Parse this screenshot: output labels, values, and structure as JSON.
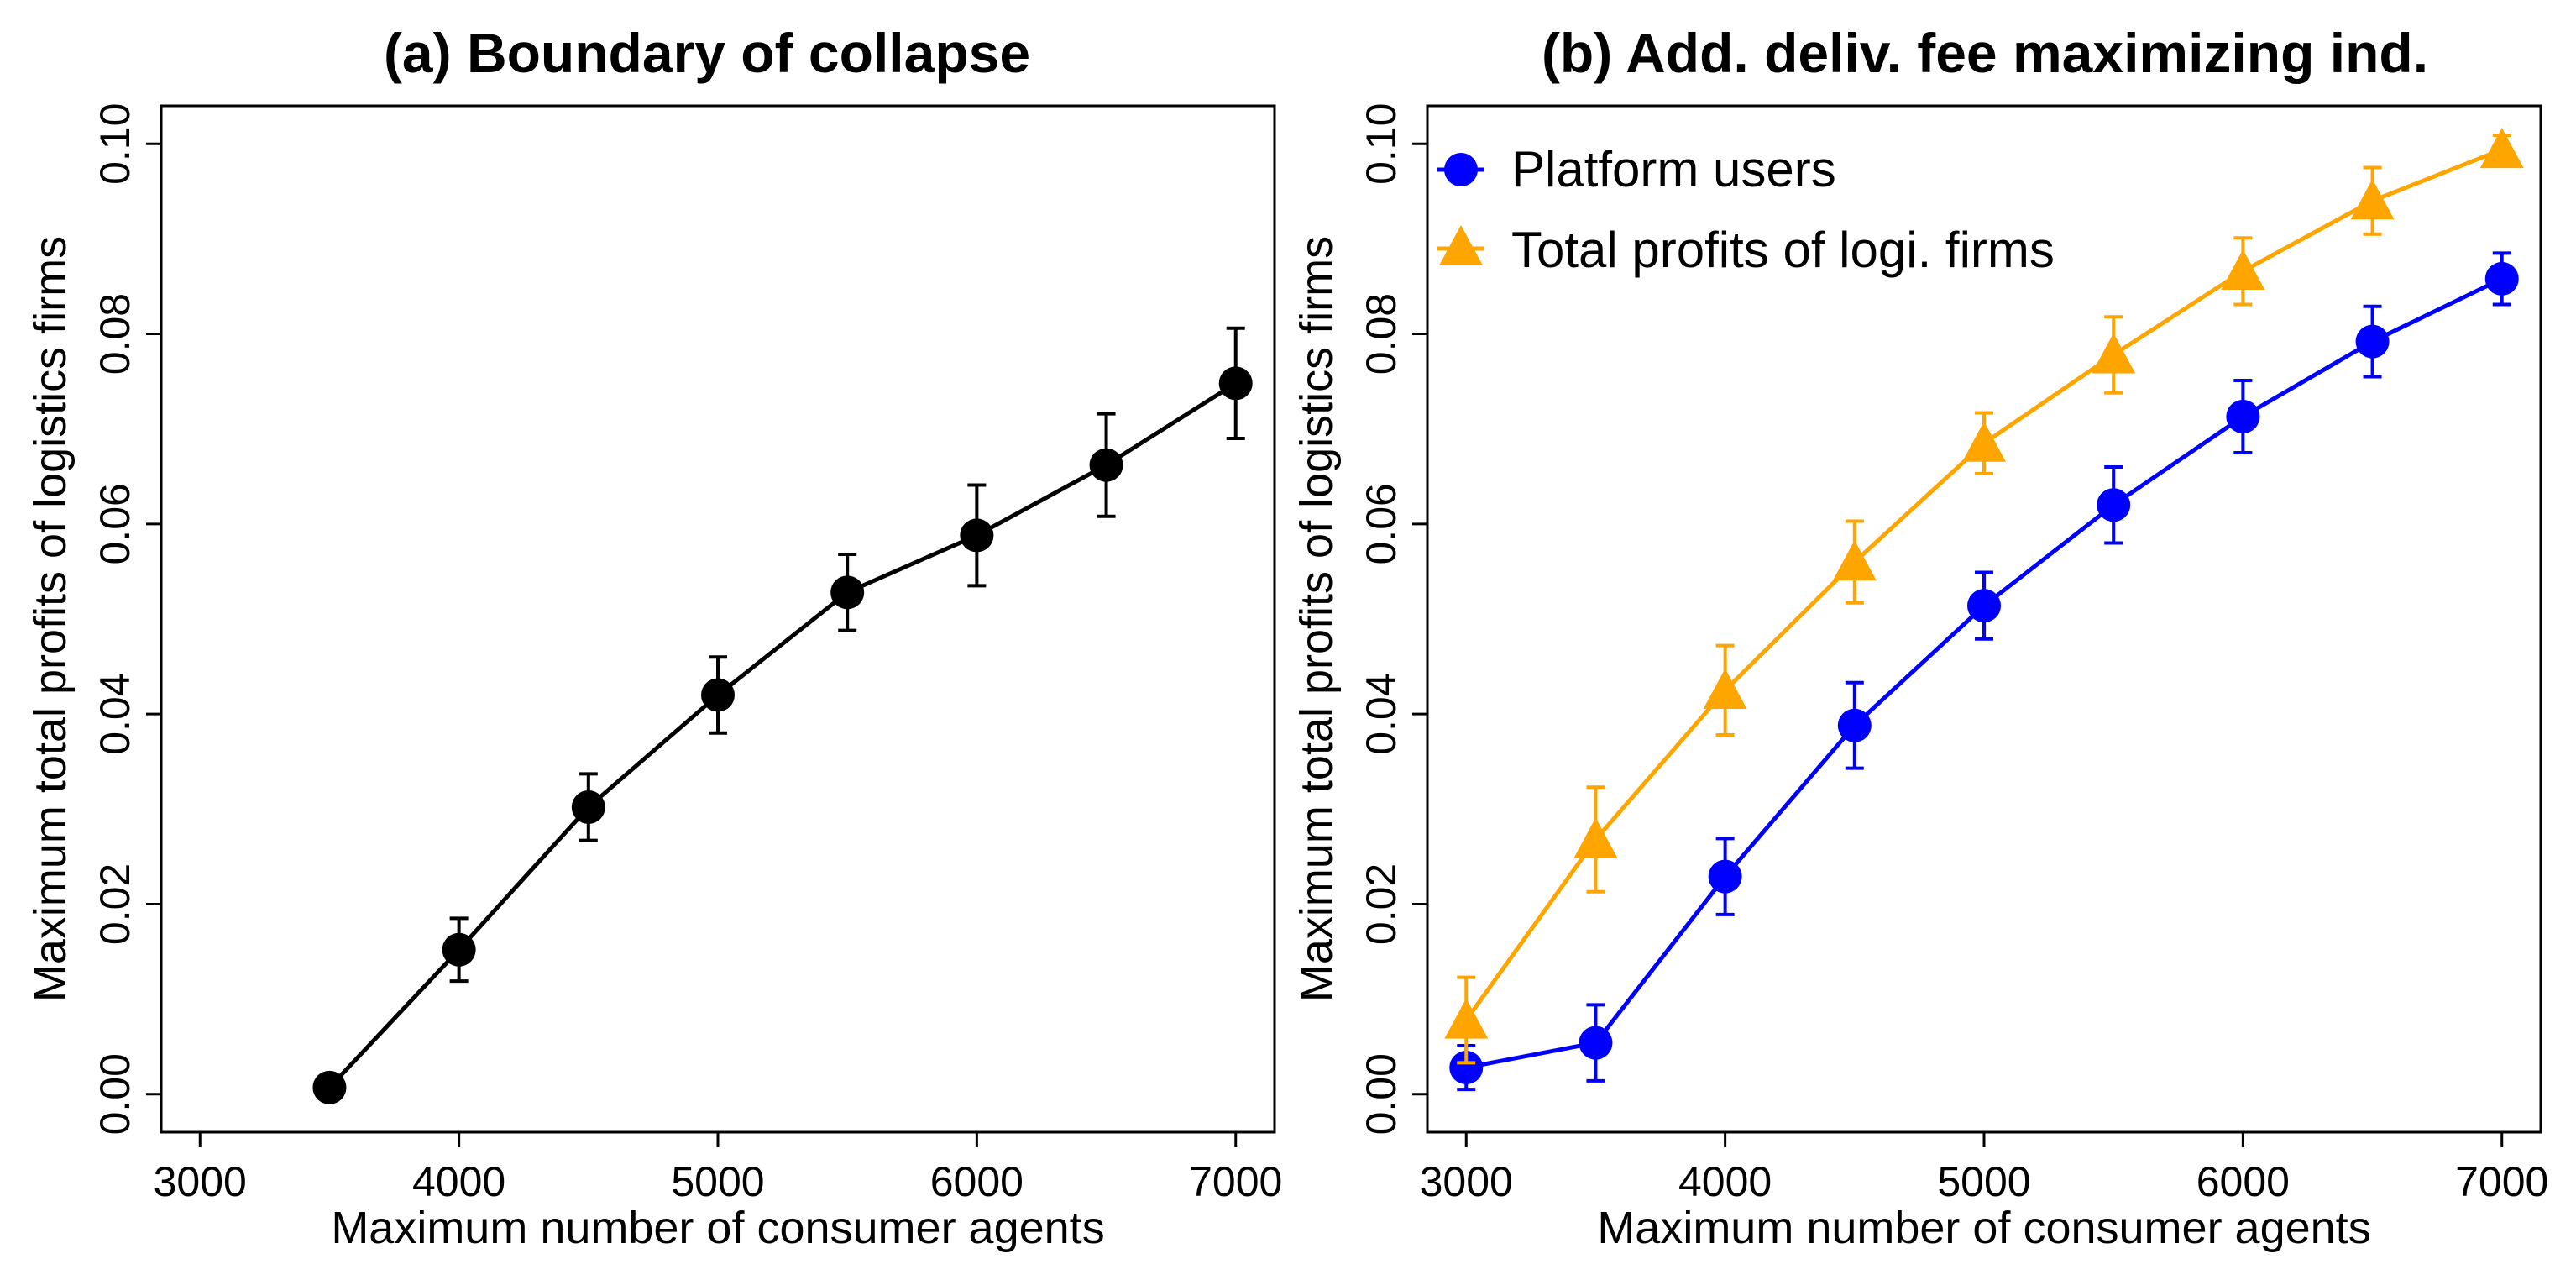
{
  "chart_data": [
    {
      "type": "line",
      "title": "(a) Boundary of collapse",
      "xlabel": "Maximum number of consumer agents",
      "ylabel": "Maximum total profits of logistics firms",
      "xlim": [
        2850,
        7150
      ],
      "ylim": [
        -0.004,
        0.104
      ],
      "xticks": [
        3000,
        4000,
        5000,
        6000,
        7000
      ],
      "xtick_labels": [
        "3000",
        "4000",
        "5000",
        "6000",
        "7000"
      ],
      "yticks": [
        0.0,
        0.02,
        0.04,
        0.06,
        0.08,
        0.1
      ],
      "ytick_labels": [
        "0.00",
        "0.02",
        "0.04",
        "0.06",
        "0.08",
        "0.10"
      ],
      "grid": false,
      "legend": null,
      "series": [
        {
          "name": "",
          "color": "#000000",
          "marker": "circle",
          "x": [
            3500,
            4000,
            4500,
            5000,
            5500,
            6000,
            6500,
            7000
          ],
          "y": [
            0.0007,
            0.0152,
            0.0302,
            0.042,
            0.0528,
            0.0588,
            0.0662,
            0.0748
          ],
          "err_low": [
            0.0003,
            0.0033,
            0.0035,
            0.004,
            0.004,
            0.0053,
            0.0054,
            0.0058
          ],
          "err_high": [
            0.0003,
            0.0033,
            0.0035,
            0.004,
            0.004,
            0.0053,
            0.0054,
            0.0058
          ]
        }
      ]
    },
    {
      "type": "line",
      "title": "(b) Add. deliv. fee maximizing ind.",
      "xlabel": "Maximum number of consumer agents",
      "ylabel": "Maximum total profits of logistics firms",
      "xlim": [
        2850,
        7150
      ],
      "ylim": [
        -0.004,
        0.104
      ],
      "xticks": [
        3000,
        4000,
        5000,
        6000,
        7000
      ],
      "xtick_labels": [
        "3000",
        "4000",
        "5000",
        "6000",
        "7000"
      ],
      "yticks": [
        0.0,
        0.02,
        0.04,
        0.06,
        0.08,
        0.1
      ],
      "ytick_labels": [
        "0.00",
        "0.02",
        "0.04",
        "0.06",
        "0.08",
        "0.10"
      ],
      "grid": false,
      "legend": "top-left",
      "series": [
        {
          "name": "Platform users",
          "color": "#0000ff",
          "marker": "circle",
          "x": [
            3000,
            3500,
            4000,
            4500,
            5000,
            5500,
            6000,
            6500,
            7000
          ],
          "y": [
            0.0028,
            0.0054,
            0.0229,
            0.0388,
            0.0514,
            0.062,
            0.0713,
            0.0792,
            0.0858
          ],
          "err_low": [
            0.0023,
            0.004,
            0.004,
            0.0045,
            0.0035,
            0.004,
            0.0038,
            0.0037,
            0.0027
          ],
          "err_high": [
            0.0023,
            0.004,
            0.004,
            0.0045,
            0.0035,
            0.004,
            0.0038,
            0.0037,
            0.0027
          ]
        },
        {
          "name": "Total profits of logi. firms",
          "color": "#ffa500",
          "marker": "triangle",
          "x": [
            3000,
            3500,
            4000,
            4500,
            5000,
            5500,
            6000,
            6500,
            7000
          ],
          "y": [
            0.0078,
            0.0268,
            0.0425,
            0.056,
            0.0685,
            0.0778,
            0.0866,
            0.094,
            0.0994
          ],
          "err_low": [
            0.0045,
            0.0055,
            0.0047,
            0.0043,
            0.0032,
            0.004,
            0.0035,
            0.0035,
            0.0015
          ],
          "err_high": [
            0.0045,
            0.0055,
            0.0047,
            0.0043,
            0.0032,
            0.004,
            0.0035,
            0.0035,
            0.0015
          ]
        }
      ]
    }
  ]
}
